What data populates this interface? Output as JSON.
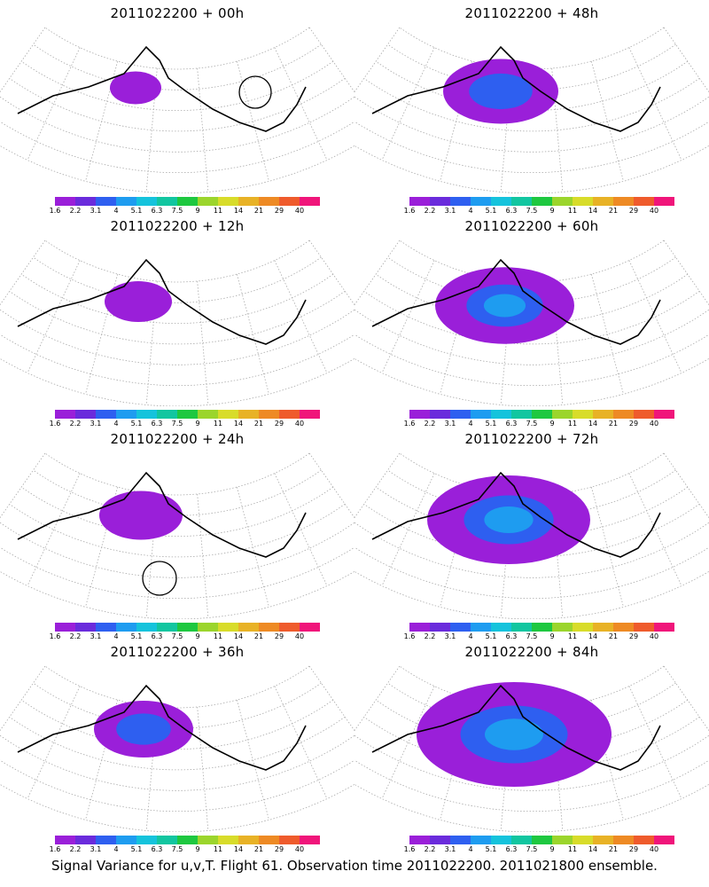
{
  "panels": [
    {
      "title": "2011022200 + 00h",
      "level": 0.1,
      "circles": [
        [
          288,
          104,
          18
        ]
      ]
    },
    {
      "title": "2011022200 + 48h",
      "level": 0.5,
      "circles": []
    },
    {
      "title": "2011022200 + 12h",
      "level": 0.2,
      "circles": []
    },
    {
      "title": "2011022200 + 60h",
      "level": 0.65,
      "circles": []
    },
    {
      "title": "2011022200 + 24h",
      "level": 0.3,
      "circles": [
        [
          180,
          652,
          19
        ]
      ]
    },
    {
      "title": "2011022200 + 72h",
      "level": 0.8,
      "circles": []
    },
    {
      "title": "2011022200 + 36h",
      "level": 0.4,
      "circles": []
    },
    {
      "title": "2011022200 + 84h",
      "level": 1.0,
      "circles": []
    }
  ],
  "colorbar": {
    "labels": [
      "1.6",
      "2.2",
      "3.1",
      "4",
      "5.1",
      "6.3",
      "7.5",
      "9",
      "11",
      "14",
      "21",
      "29",
      "40"
    ],
    "colors": [
      "#9a1fd9",
      "#6a2bdc",
      "#2e5ff0",
      "#1e9cf0",
      "#15c3dc",
      "#12c6a0",
      "#1ec840",
      "#9bd52c",
      "#d8dc2a",
      "#e8b226",
      "#ee8a24",
      "#ef5b2c",
      "#f0157a"
    ]
  },
  "caption": "Signal Variance for u,v,T. Flight 61. Observation time 2011022200. 2011021800 ensemble."
}
